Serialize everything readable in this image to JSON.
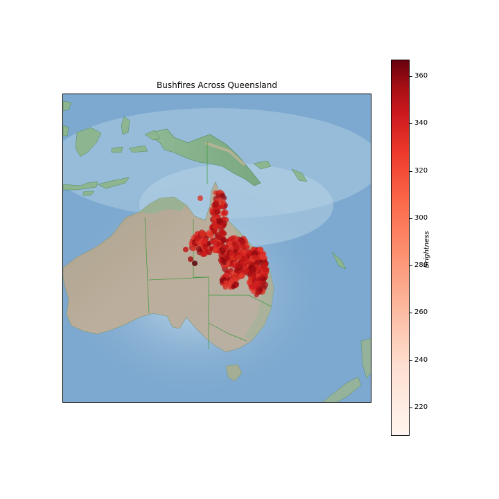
{
  "title": "Bushfires Across Queensland",
  "colorbar": {
    "label": "Brightness",
    "min": 208,
    "max": 367,
    "ticks": [
      220,
      240,
      260,
      280,
      300,
      320,
      340,
      360
    ],
    "tick_labels": [
      "220",
      "240",
      "260",
      "280",
      "300",
      "320",
      "340",
      "360"
    ]
  },
  "colors": {
    "ocean": "#7fa9cf",
    "land": "#b9ac98",
    "border": "#3a9a3a",
    "fire": "#cc1a1a"
  },
  "icons": [
    "map-basemap",
    "fire-points",
    "colorbar"
  ]
}
